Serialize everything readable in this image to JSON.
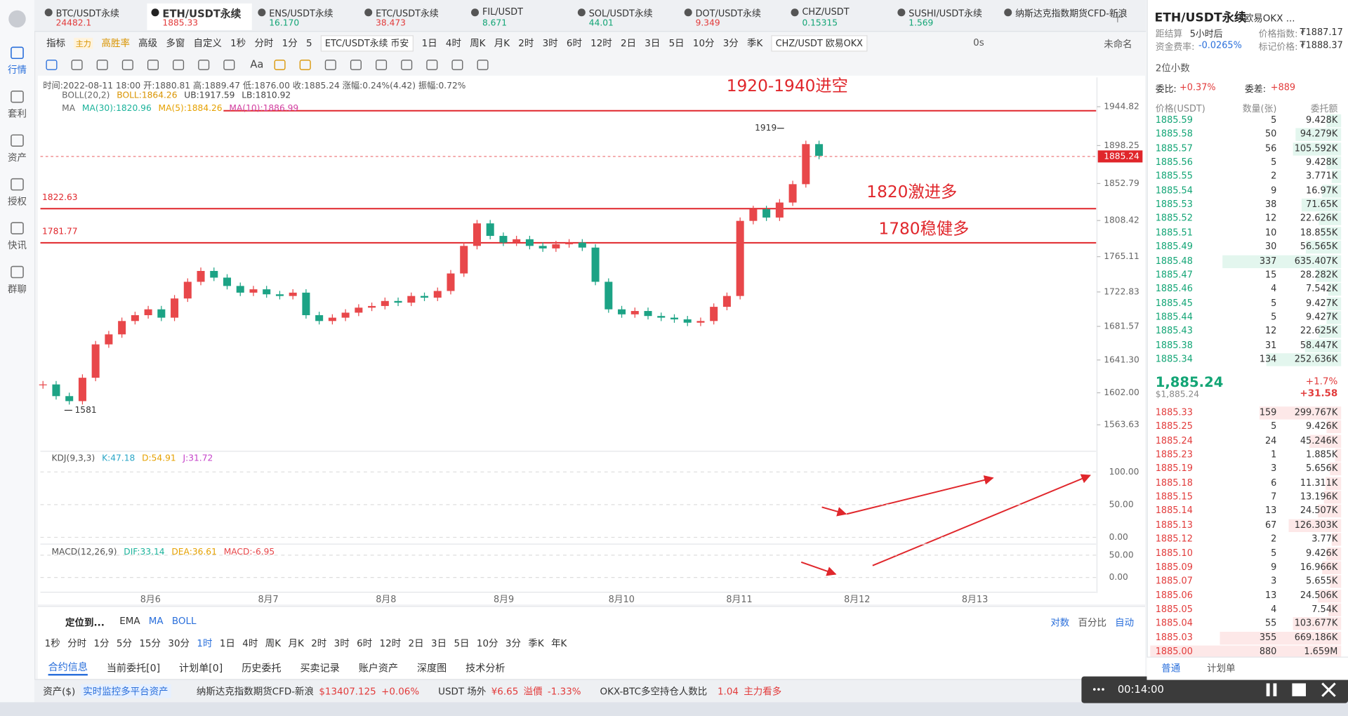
{
  "sidebar": [
    "行情",
    "套利",
    "资产",
    "授权",
    "快讯",
    "群聊"
  ],
  "tabs": [
    {
      "name": "BTC/USDT永续",
      "price": "24482.1",
      "color": "#e23b3b"
    },
    {
      "name": "ETH/USDT永续",
      "price": "1885.33",
      "color": "#e23b3b"
    },
    {
      "name": "ENS/USDT永续",
      "price": "16.170",
      "color": "#12a575"
    },
    {
      "name": "ETC/USDT永续",
      "price": "38.473",
      "color": "#e23b3b"
    },
    {
      "name": "FIL/USDT",
      "price": "8.671",
      "color": "#12a575"
    },
    {
      "name": "SOL/USDT永续",
      "price": "44.01",
      "color": "#12a575"
    },
    {
      "name": "DOT/USDT永续",
      "price": "9.349",
      "color": "#e23b3b"
    },
    {
      "name": "CHZ/USDT",
      "price": "0.15315",
      "color": "#12a575"
    },
    {
      "name": "SUSHI/USDT永续",
      "price": "1.569",
      "color": "#12a575"
    },
    {
      "name": "纳斯达克指数期货CFD-新浪"
    }
  ],
  "toolbar": {
    "left": [
      "指标",
      "主力",
      "高胜率",
      "高级",
      "多窗",
      "自定义",
      "1秒",
      "分时",
      "1分",
      "5"
    ],
    "tip1": "ETC/USDT永续 币安",
    "periods": [
      "1日",
      "4时",
      "周K",
      "月K",
      "2时",
      "3时",
      "6时",
      "12时",
      "2日",
      "3日",
      "5日",
      "10分",
      "3分",
      "季K"
    ],
    "tip2": "CHZ/USDT 欧易OKX",
    "right": [
      "0s",
      "未命名"
    ],
    "font_tool": "Aa"
  },
  "chart_data": {
    "type": "candlestick",
    "info": "时间:2022-08-11 18:00 开:1880.81 高:1889.47 低:1876.00 收:1885.24 涨幅:0.24%(4.42) 振幅:0.72%",
    "boll": [
      "BOLL(20,2)",
      "BOLL:1864.26",
      "UB:1917.59",
      "LB:1810.92"
    ],
    "ma": [
      "MA",
      "MA(30):1820.96",
      "MA(5):1884.26",
      "MA(10):1886.99"
    ],
    "closes": [
      1612,
      1598,
      1592,
      1620,
      1660,
      1672,
      1688,
      1695,
      1702,
      1692,
      1715,
      1735,
      1748,
      1740,
      1730,
      1722,
      1726,
      1720,
      1718,
      1722,
      1695,
      1688,
      1692,
      1698,
      1704,
      1706,
      1712,
      1710,
      1718,
      1716,
      1724,
      1745,
      1778,
      1805,
      1790,
      1782,
      1786,
      1778,
      1775,
      1780,
      1782,
      1776,
      1735,
      1702,
      1696,
      1700,
      1694,
      1692,
      1690,
      1686,
      1688,
      1705,
      1718,
      1808,
      1822,
      1812,
      1830,
      1852,
      1900,
      1886
    ],
    "up_color": "#e8474a",
    "down_color": "#1ca385",
    "ylim": [
      1535,
      1980
    ],
    "yticks": [
      1944.82,
      1898.25,
      1852.79,
      1808.42,
      1765.11,
      1722.83,
      1681.57,
      {
        "value": 1641.3,
        "label": "1641.30"
      },
      {
        "value": 1602,
        "label": "1602.00"
      },
      1563.63
    ],
    "current_price": 1885.24,
    "hlines": [
      {
        "value": 1940
      },
      {
        "value": 1822.63,
        "label": "1822.63"
      },
      {
        "value": 1781.77,
        "label": "1781.77"
      }
    ],
    "annotations": [
      "1920-1940进空",
      "1820激进多",
      "1780稳健多"
    ],
    "markers": [
      1919,
      1581
    ],
    "categories": [
      "8月6",
      "8月7",
      "8月8",
      "8月9",
      "8月10",
      "8月11",
      "8月12",
      "8月13"
    ]
  },
  "kdj": {
    "title": "KDJ(9,3,3)",
    "values": [
      "K:47.18",
      "D:54.91",
      "J:31.72"
    ],
    "ylim": [
      -9,
      129
    ],
    "yticks": [
      {
        "value": 100,
        "label": "100.00"
      },
      {
        "value": 50,
        "label": "50.00"
      },
      {
        "value": 0,
        "label": "0.00"
      }
    ]
  },
  "macd": {
    "title": "MACD(12,26,9)",
    "values": [
      "DIF:33.14",
      "DEA:36.61",
      "MACD:-6.95"
    ],
    "ylim": [
      -35,
      69
    ],
    "yticks": [
      {
        "value": 50,
        "label": "50.00"
      },
      {
        "value": 0,
        "label": "0.00"
      }
    ]
  },
  "bottom": {
    "locate": "定位到...",
    "indicators": [
      "EMA",
      "MA",
      "BOLL"
    ],
    "scale": [
      "对数",
      "百分比",
      "自动"
    ],
    "periods": [
      "1秒",
      "分时",
      "1分",
      "5分",
      "15分",
      "30分",
      "1时",
      "1日",
      "4时",
      "周K",
      "月K",
      "2时",
      "3时",
      "6时",
      "12时",
      "2日",
      "3日",
      "5日",
      "10分",
      "3分",
      "季K",
      "年K"
    ],
    "tabs": [
      "合约信息",
      "当前委托[0]",
      "计划单[0]",
      "历史委托",
      "买卖记录",
      "账户资产",
      "深度图",
      "技术分析"
    ],
    "status": [
      "资产($)",
      "实时监控多平台资产",
      "纳斯达克指数期货CFD-新浪",
      "$13407.125",
      "+0.06%",
      "USDT 场外",
      "¥6.65",
      "溢價",
      "-1.33%",
      "OKX-BTC多空持仓人数比",
      "1.04",
      "主力看多"
    ]
  },
  "video": "00:14:00",
  "book": {
    "symbol": "ETH/USDT永续",
    "exchange": "欧易OKX ...",
    "settle_label": "距结算",
    "settle": "5小时后",
    "index_label": "价格指数:",
    "index": "₮1887.17",
    "rate_label": "资金费率:",
    "rate": "-0.0265%",
    "mark_label": "标记价格:",
    "mark": "₮1888.37",
    "decimals": "2位小数",
    "ratio_label": "委比:",
    "ratio": "+0.37%",
    "diff_label": "委差:",
    "diff": "+889",
    "headers": [
      "价格(USDT)",
      "数量(张)",
      "委托额"
    ],
    "asks": {
      "color": "#12a575",
      "rows": [
        [
          "1885.59",
          5,
          "9.428K"
        ],
        [
          "1885.58",
          50,
          "94.279K"
        ],
        [
          "1885.57",
          56,
          "105.592K"
        ],
        [
          "1885.56",
          5,
          "9.428K"
        ],
        [
          "1885.55",
          2,
          "3.771K"
        ],
        [
          "1885.54",
          9,
          "16.97K"
        ],
        [
          "1885.53",
          38,
          "71.65K"
        ],
        [
          "1885.52",
          12,
          "22.626K"
        ],
        [
          "1885.51",
          10,
          "18.855K"
        ],
        [
          "1885.49",
          30,
          "56.565K"
        ],
        [
          "1885.48",
          337,
          "635.407K"
        ],
        [
          "1885.47",
          15,
          "28.282K"
        ],
        [
          "1885.46",
          4,
          "7.542K"
        ],
        [
          "1885.45",
          5,
          "9.427K"
        ],
        [
          "1885.44",
          5,
          "9.427K"
        ],
        [
          "1885.43",
          12,
          "22.625K"
        ],
        [
          "1885.38",
          31,
          "58.447K"
        ],
        [
          "1885.34",
          134,
          "252.636K"
        ]
      ]
    },
    "last": "1,885.24",
    "change_pct": "+1.7%",
    "last_usd": "$1,885.24",
    "change": "+31.58",
    "bids": {
      "color": "#e23b3b",
      "rows": [
        [
          "1885.33",
          159,
          "299.767K"
        ],
        [
          "1885.25",
          5,
          "9.426K"
        ],
        [
          "1885.24",
          24,
          "45.246K"
        ],
        [
          "1885.23",
          1,
          "1.885K"
        ],
        [
          "1885.19",
          3,
          "5.656K"
        ],
        [
          "1885.18",
          6,
          "11.311K"
        ],
        [
          "1885.15",
          7,
          "13.196K"
        ],
        [
          "1885.14",
          13,
          "24.507K"
        ],
        [
          "1885.13",
          67,
          "126.303K"
        ],
        [
          "1885.12",
          2,
          "3.77K"
        ],
        [
          "1885.10",
          5,
          "9.426K"
        ],
        [
          "1885.09",
          9,
          "16.966K"
        ],
        [
          "1885.07",
          3,
          "5.655K"
        ],
        [
          "1885.06",
          13,
          "24.506K"
        ],
        [
          "1885.05",
          4,
          "7.54K"
        ],
        [
          "1885.04",
          55,
          "103.677K"
        ],
        [
          "1885.03",
          355,
          "669.186K"
        ],
        [
          "1885.00",
          880,
          "1.659M"
        ]
      ]
    },
    "tabs": [
      "普通",
      "计划单"
    ]
  }
}
